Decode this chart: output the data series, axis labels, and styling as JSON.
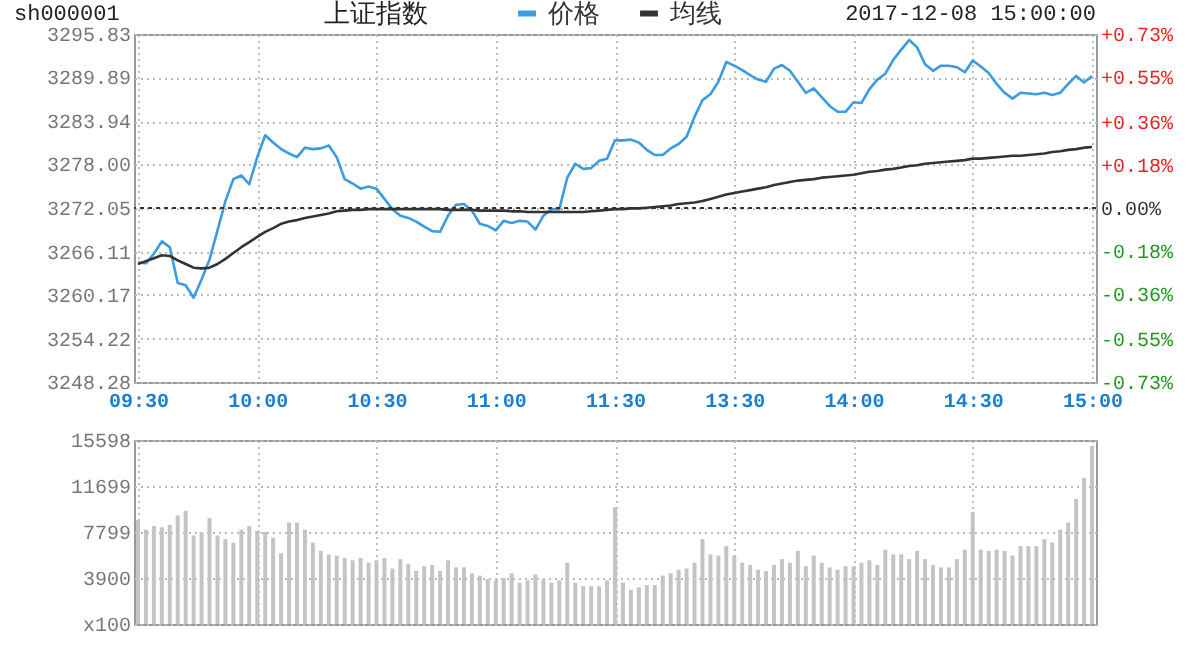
{
  "chart_data": [
    {
      "type": "line",
      "title": "上证指数",
      "annotations": [
        "sh000001",
        "2017-12-08 15:00:00"
      ],
      "categories": [
        "09:30",
        null,
        null,
        null,
        null,
        null,
        null,
        null,
        null,
        null,
        null,
        null,
        null,
        null,
        null,
        "10:00",
        null,
        null,
        null,
        null,
        null,
        null,
        null,
        null,
        null,
        null,
        null,
        null,
        null,
        null,
        "10:30",
        null,
        null,
        null,
        null,
        null,
        null,
        null,
        null,
        null,
        null,
        null,
        null,
        null,
        null,
        "11:00",
        null,
        null,
        null,
        null,
        null,
        null,
        null,
        null,
        null,
        null,
        null,
        null,
        null,
        null,
        "11:30",
        null,
        null,
        null,
        null,
        null,
        null,
        null,
        null,
        null,
        null,
        null,
        null,
        null,
        null,
        "13:30",
        null,
        null,
        null,
        null,
        null,
        null,
        null,
        null,
        null,
        null,
        null,
        null,
        null,
        null,
        "14:00",
        null,
        null,
        null,
        null,
        null,
        null,
        null,
        null,
        null,
        null,
        null,
        null,
        null,
        null,
        "14:30",
        null,
        null,
        null,
        null,
        null,
        null,
        null,
        null,
        null,
        null,
        null,
        null,
        null,
        null,
        "15:00"
      ],
      "ylim": [
        3248.28,
        3295.83
      ],
      "yticks": [
        {
          "value": 3248.28,
          "label": "3248.28"
        },
        {
          "value": 3254.22,
          "label": "3254.22"
        },
        {
          "value": 3260.17,
          "label": "3260.17"
        },
        {
          "value": 3266.11,
          "label": "3266.11"
        },
        {
          "value": 3272.05,
          "label": "3272.05"
        },
        {
          "value": 3278,
          "label": "3278.00"
        },
        {
          "value": 3283.94,
          "label": "3283.94"
        },
        {
          "value": 3289.89,
          "label": "3289.89"
        },
        {
          "value": 3295.83,
          "label": "3295.83"
        }
      ],
      "y2lim": [
        -0.73,
        0.73
      ],
      "y2ticks": [
        {
          "value": -0.73,
          "label": "-0.73%"
        },
        {
          "value": -0.55,
          "label": "-0.55%"
        },
        {
          "value": -0.36,
          "label": "-0.36%"
        },
        {
          "value": -0.18,
          "label": "-0.18%"
        },
        {
          "value": 0,
          "label": "0.00%"
        },
        {
          "value": 0.18,
          "label": "+0.18%"
        },
        {
          "value": 0.36,
          "label": "+0.36%"
        },
        {
          "value": 0.55,
          "label": "+0.55%"
        },
        {
          "value": 0.73,
          "label": "+0.73%"
        }
      ],
      "ref_lines": [
        {
          "axis": "y2",
          "value": 0,
          "line_style": "dotted",
          "color": "#333333"
        }
      ],
      "grid": true,
      "legend": "top",
      "series": [
        {
          "name": "价格",
          "color": "#3d9be0",
          "values": [
            3264.6,
            3264.5,
            3265.8,
            3267.5,
            3266.7,
            3261.8,
            3261.5,
            3259.8,
            3262.3,
            3265.0,
            3269.0,
            3273.0,
            3276.0,
            3276.5,
            3275.3,
            3279.0,
            3282.0,
            3281.0,
            3280.1,
            3279.5,
            3279.0,
            3280.3,
            3280.1,
            3280.2,
            3280.6,
            3279.0,
            3276.0,
            3275.4,
            3274.7,
            3275.0,
            3274.7,
            3273.3,
            3271.9,
            3271.0,
            3270.7,
            3270.2,
            3269.5,
            3268.9,
            3268.8,
            3271.0,
            3272.5,
            3272.6,
            3271.7,
            3269.9,
            3269.6,
            3269.0,
            3270.3,
            3270.0,
            3270.3,
            3270.2,
            3269.1,
            3271.0,
            3271.9,
            3271.9,
            3276.2,
            3278.1,
            3277.4,
            3277.5,
            3278.5,
            3278.8,
            3281.3,
            3281.3,
            3281.4,
            3281.0,
            3280.0,
            3279.3,
            3279.3,
            3280.2,
            3280.8,
            3281.8,
            3284.5,
            3286.8,
            3287.6,
            3289.3,
            3292.0,
            3291.5,
            3290.9,
            3290.2,
            3289.6,
            3289.3,
            3291.1,
            3291.6,
            3290.8,
            3289.3,
            3287.8,
            3288.4,
            3287.2,
            3286.0,
            3285.2,
            3285.2,
            3286.5,
            3286.4,
            3288.3,
            3289.6,
            3290.4,
            3292.3,
            3293.7,
            3295.0,
            3294.0,
            3291.7,
            3290.8,
            3291.5,
            3291.5,
            3291.3,
            3290.6,
            3292.2,
            3291.4,
            3290.5,
            3289.0,
            3287.8,
            3287.0,
            3287.8,
            3287.7,
            3287.6,
            3287.8,
            3287.5,
            3287.8,
            3289.0,
            3290.1,
            3289.2,
            3290.1
          ]
        },
        {
          "name": "均线",
          "color": "#333333",
          "values": [
            3264.4,
            3264.8,
            3265.2,
            3265.6,
            3265.5,
            3264.9,
            3264.4,
            3263.9,
            3263.8,
            3263.9,
            3264.4,
            3265.1,
            3265.9,
            3266.7,
            3267.4,
            3268.1,
            3268.8,
            3269.3,
            3269.9,
            3270.2,
            3270.4,
            3270.7,
            3270.9,
            3271.1,
            3271.3,
            3271.6,
            3271.7,
            3271.8,
            3271.8,
            3271.9,
            3271.9,
            3271.9,
            3271.9,
            3271.9,
            3271.9,
            3271.9,
            3271.9,
            3271.9,
            3271.9,
            3271.8,
            3271.8,
            3271.8,
            3271.8,
            3271.7,
            3271.7,
            3271.7,
            3271.7,
            3271.6,
            3271.6,
            3271.5,
            3271.5,
            3271.5,
            3271.5,
            3271.5,
            3271.5,
            3271.5,
            3271.5,
            3271.6,
            3271.7,
            3271.8,
            3271.9,
            3271.9,
            3272.0,
            3272.0,
            3272.1,
            3272.2,
            3272.3,
            3272.4,
            3272.6,
            3272.7,
            3272.8,
            3273.0,
            3273.3,
            3273.6,
            3273.9,
            3274.1,
            3274.3,
            3274.5,
            3274.7,
            3274.9,
            3275.2,
            3275.4,
            3275.6,
            3275.8,
            3275.9,
            3276.0,
            3276.2,
            3276.3,
            3276.4,
            3276.5,
            3276.6,
            3276.8,
            3277.0,
            3277.1,
            3277.3,
            3277.4,
            3277.6,
            3277.8,
            3277.9,
            3278.1,
            3278.2,
            3278.3,
            3278.4,
            3278.5,
            3278.6,
            3278.8,
            3278.8,
            3278.9,
            3279.0,
            3279.1,
            3279.2,
            3279.2,
            3279.3,
            3279.4,
            3279.5,
            3279.7,
            3279.8,
            3280.0,
            3280.1,
            3280.3,
            3280.4
          ]
        }
      ]
    },
    {
      "type": "bar",
      "color": "#c4c4c4",
      "grid": true,
      "tick_labels": "y",
      "categories": [
        null,
        null,
        null,
        null,
        null,
        null,
        null,
        null,
        null,
        null,
        null,
        null,
        null,
        null,
        null,
        null,
        null,
        null,
        null,
        null,
        null,
        null,
        null,
        null,
        null,
        null,
        null,
        null,
        null,
        null,
        null,
        null,
        null,
        null,
        null,
        null,
        null,
        null,
        null,
        null,
        null,
        null,
        null,
        null,
        null,
        null,
        null,
        null,
        null,
        null,
        null,
        null,
        null,
        null,
        null,
        null,
        null,
        null,
        null,
        null,
        null,
        null,
        null,
        null,
        null,
        null,
        null,
        null,
        null,
        null,
        null,
        null,
        null,
        null,
        null,
        null,
        null,
        null,
        null,
        null,
        null,
        null,
        null,
        null,
        null,
        null,
        null,
        null,
        null,
        null,
        null,
        null,
        null,
        null,
        null,
        null,
        null,
        null,
        null,
        null,
        null,
        null,
        null,
        null,
        null,
        null,
        null,
        null,
        null,
        null,
        null,
        null,
        null,
        null,
        null,
        null,
        null,
        null,
        null,
        null,
        null
      ],
      "ylim": [
        0,
        15598
      ],
      "yticks": [
        {
          "value": 0,
          "label": "x100"
        },
        3900,
        7799,
        11699,
        15598
      ],
      "values": [
        8800,
        8000,
        8300,
        8200,
        8400,
        9200,
        9600,
        7500,
        7800,
        9000,
        7500,
        7200,
        6900,
        8000,
        8300,
        7900,
        7800,
        7300,
        6000,
        8600,
        8600,
        8000,
        6900,
        6200,
        5900,
        5800,
        5600,
        5400,
        5600,
        5200,
        5400,
        5600,
        4700,
        5500,
        5100,
        4500,
        4900,
        5000,
        4500,
        5400,
        4800,
        4800,
        4300,
        4100,
        3800,
        3700,
        3900,
        4300,
        3500,
        3700,
        4200,
        3800,
        3500,
        3700,
        5200,
        3500,
        3200,
        3200,
        3200,
        3700,
        9900,
        3500,
        2900,
        3100,
        3300,
        3300,
        4100,
        4300,
        4600,
        4700,
        5200,
        7200,
        5900,
        5800,
        6600,
        5800,
        5200,
        5000,
        4600,
        4500,
        5000,
        5500,
        5200,
        6200,
        4900,
        5800,
        5200,
        4800,
        4600,
        4900,
        4900,
        5200,
        5400,
        5000,
        6300,
        5900,
        5900,
        5500,
        6200,
        5500,
        5000,
        4800,
        4800,
        5500,
        6300,
        9500,
        6300,
        6200,
        6300,
        6200,
        5800,
        6600,
        6600,
        6600,
        7200,
        6900,
        8000,
        8600,
        10600,
        12400,
        15100
      ]
    }
  ]
}
